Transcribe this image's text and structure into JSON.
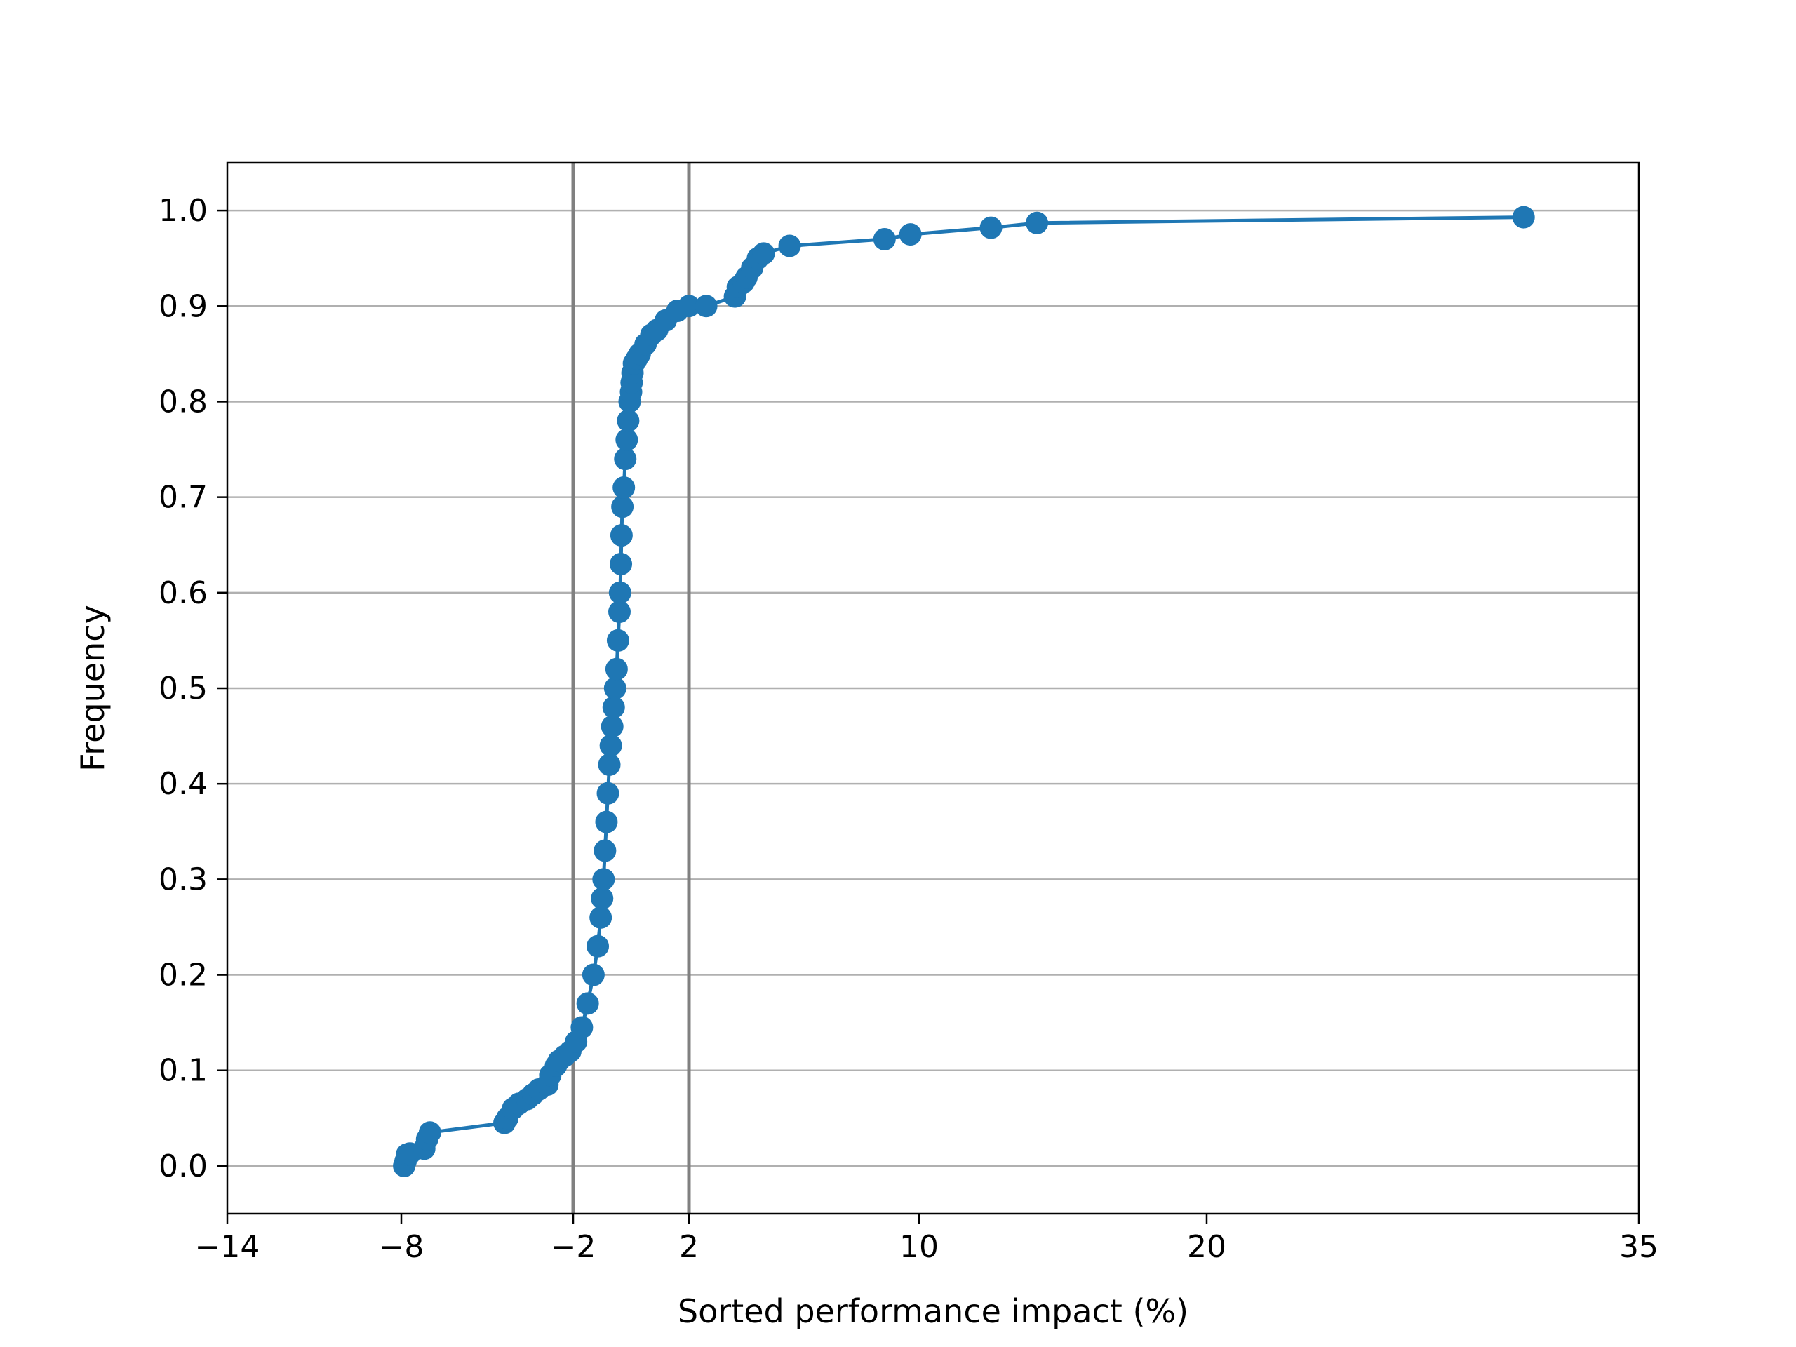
{
  "chart_data": {
    "type": "line",
    "title": "",
    "xlabel": "Sorted performance impact (%)",
    "ylabel": "Frequency",
    "xlim": [
      -14,
      35
    ],
    "ylim": [
      -0.05,
      1.05
    ],
    "x_ticks": [
      -14,
      -8,
      -2,
      2,
      10,
      20,
      35
    ],
    "x_tick_labels": [
      "−14",
      "−8",
      "−2",
      "2",
      "10",
      "20",
      "35"
    ],
    "y_ticks": [
      0.0,
      0.1,
      0.2,
      0.3,
      0.4,
      0.5,
      0.6,
      0.7,
      0.8,
      0.9,
      1.0
    ],
    "y_tick_labels": [
      "0.0",
      "0.1",
      "0.2",
      "0.3",
      "0.4",
      "0.5",
      "0.6",
      "0.7",
      "0.8",
      "0.9",
      "1.0"
    ],
    "grid": "horizontal",
    "reference_lines_x": [
      -2,
      2
    ],
    "colors": {
      "series": "#1f77b4",
      "reference": "#808080",
      "grid": "#b0b0b0"
    },
    "series": [
      {
        "marker": "circle",
        "x": [
          -7.9,
          -7.85,
          -7.8,
          -7.7,
          -7.2,
          -7.1,
          -7.0,
          -4.4,
          -4.3,
          -4.1,
          -3.9,
          -3.6,
          -3.4,
          -3.2,
          -2.9,
          -2.8,
          -2.6,
          -2.5,
          -2.3,
          -2.1,
          -1.9,
          -1.7,
          -1.5,
          -1.3,
          -1.15,
          -1.05,
          -1.0,
          -0.95,
          -0.9,
          -0.85,
          -0.8,
          -0.75,
          -0.7,
          -0.65,
          -0.6,
          -0.55,
          -0.5,
          -0.45,
          -0.4,
          -0.38,
          -0.35,
          -0.33,
          -0.3,
          -0.25,
          -0.2,
          -0.15,
          -0.1,
          -0.05,
          0.0,
          0.02,
          0.05,
          0.1,
          0.2,
          0.3,
          0.5,
          0.7,
          0.9,
          1.2,
          1.6,
          2.0,
          2.6,
          3.6,
          3.7,
          3.9,
          4.0,
          4.2,
          4.4,
          4.6,
          5.5,
          8.8,
          9.7,
          12.5,
          14.1,
          31.0
        ],
        "y": [
          0.0,
          0.005,
          0.012,
          0.013,
          0.018,
          0.028,
          0.035,
          0.045,
          0.05,
          0.06,
          0.065,
          0.07,
          0.075,
          0.08,
          0.085,
          0.095,
          0.105,
          0.11,
          0.115,
          0.12,
          0.13,
          0.145,
          0.17,
          0.2,
          0.23,
          0.26,
          0.28,
          0.3,
          0.33,
          0.36,
          0.39,
          0.42,
          0.44,
          0.46,
          0.48,
          0.5,
          0.52,
          0.55,
          0.58,
          0.6,
          0.63,
          0.66,
          0.69,
          0.71,
          0.74,
          0.76,
          0.78,
          0.8,
          0.81,
          0.82,
          0.83,
          0.84,
          0.845,
          0.85,
          0.86,
          0.87,
          0.875,
          0.885,
          0.895,
          0.9,
          0.9,
          0.91,
          0.92,
          0.925,
          0.93,
          0.94,
          0.95,
          0.955,
          0.963,
          0.97,
          0.975,
          0.982,
          0.987,
          0.993
        ]
      }
    ]
  }
}
